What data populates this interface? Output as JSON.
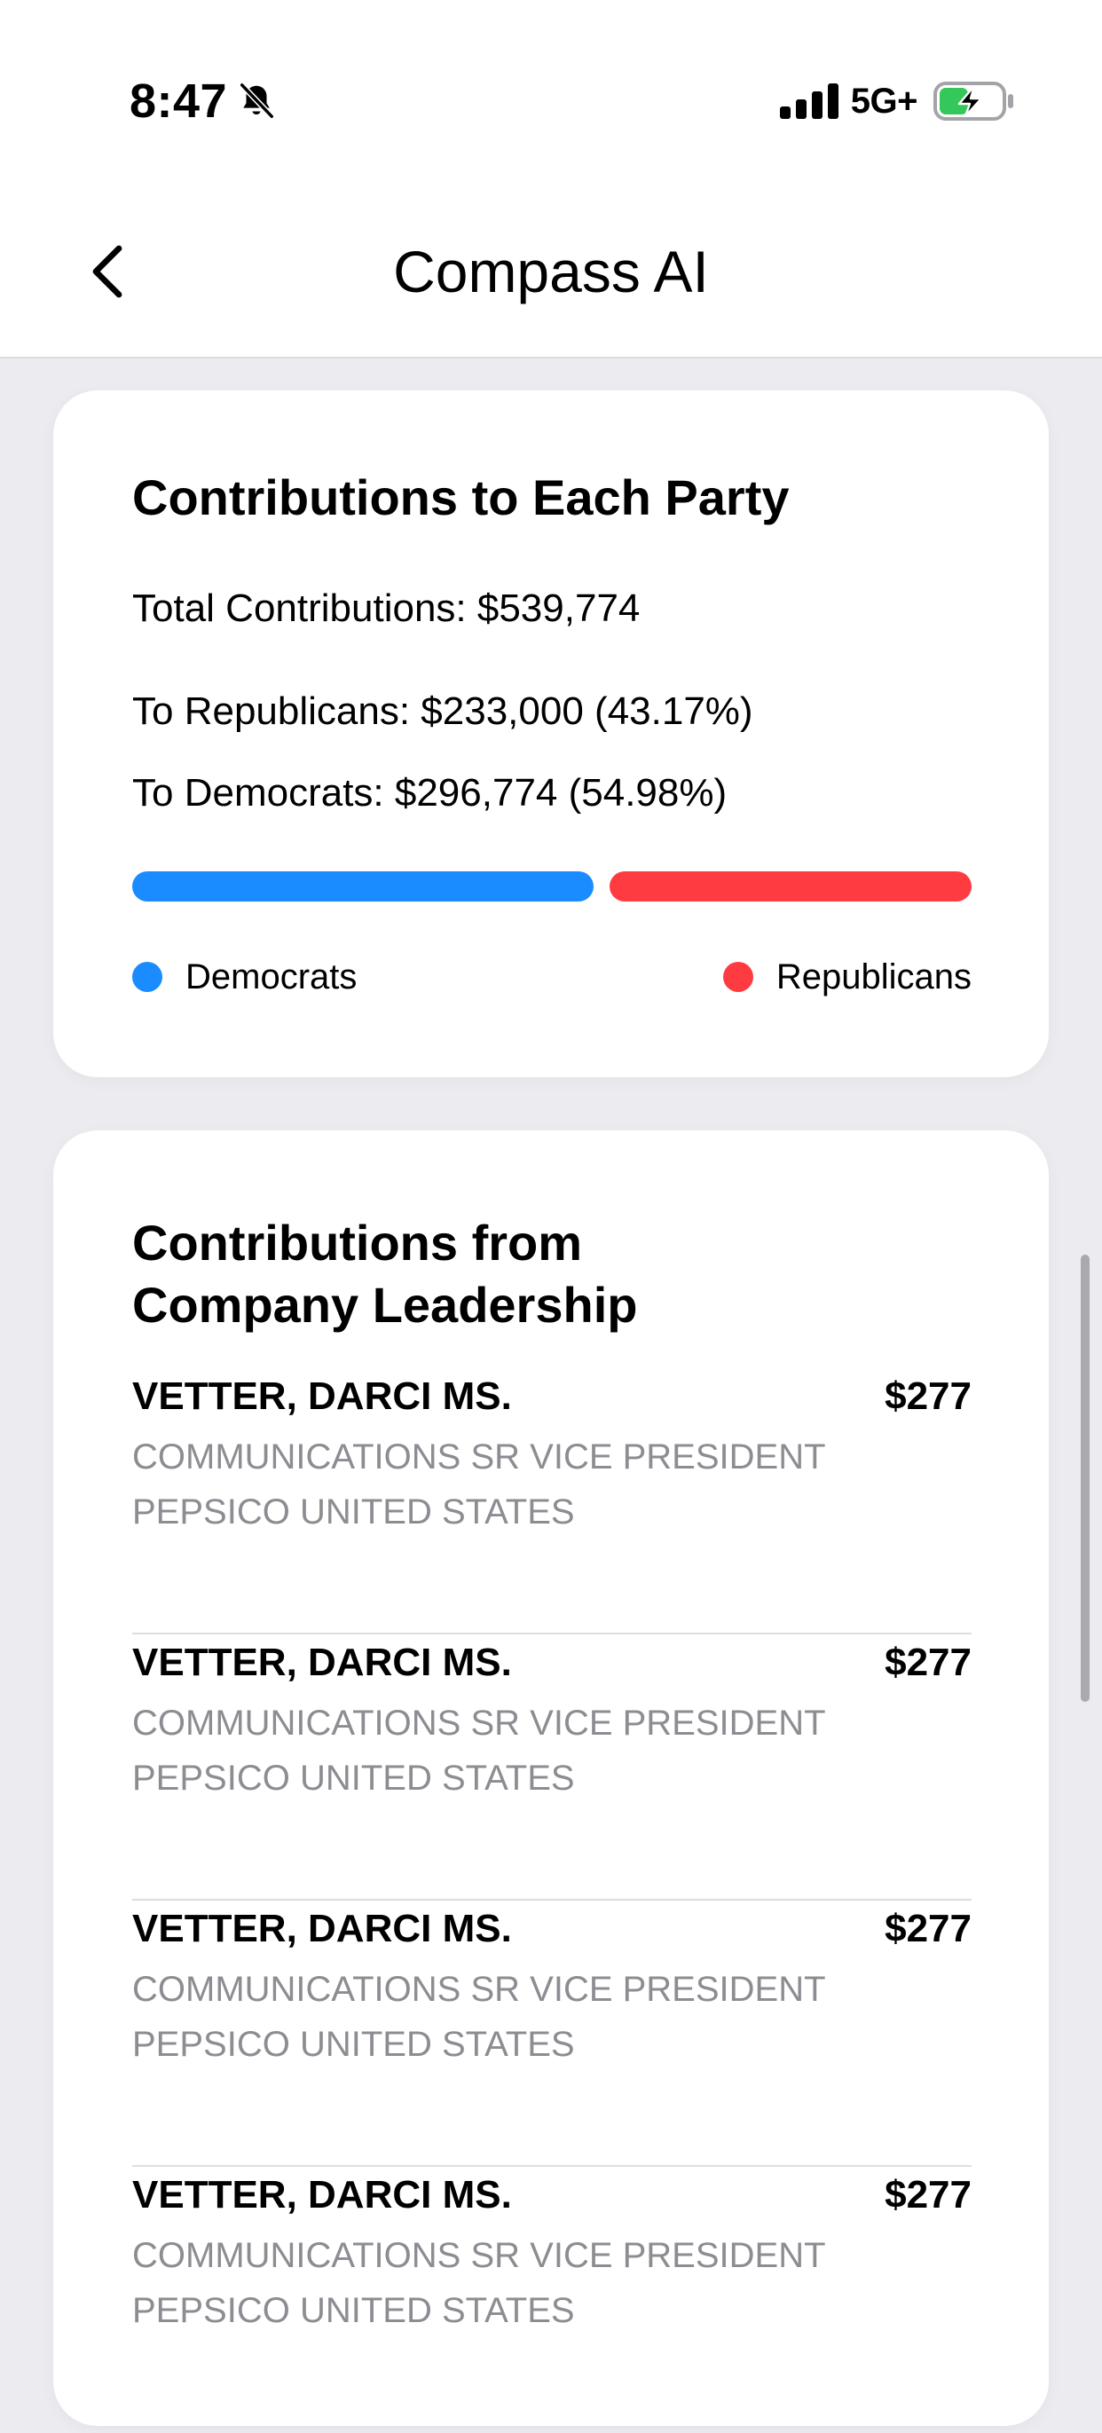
{
  "status_bar": {
    "time": "8:47",
    "network": "5G+",
    "icons": [
      "bell-slash-icon",
      "signal-icon",
      "battery-charging-icon"
    ]
  },
  "header": {
    "title": "Compass AI",
    "back_icon": "chevron-left-icon"
  },
  "party_card": {
    "title": "Contributions to Each Party",
    "total": "Total Contributions: $539,774",
    "republicans": "To Republicans: $233,000 (43.17%)",
    "democrats": "To Democrats: $296,774 (54.98%)",
    "bar": {
      "democrats_share": 0.5498,
      "republicans_share": 0.4317
    },
    "legend": {
      "democrats": "Democrats",
      "republicans": "Republicans"
    },
    "colors": {
      "democrats": "#1a8cff",
      "republicans": "#ff3b42",
      "track": "#ececf0"
    }
  },
  "leaders_card": {
    "title_line1": "Contributions from",
    "title_line2": "Company Leadership",
    "rows": [
      {
        "name": "VETTER, DARCI MS.",
        "amount": "$277",
        "role": "COMMUNICATIONS SR VICE PRESIDENT",
        "company": "PEPSICO UNITED STATES"
      },
      {
        "name": "VETTER, DARCI MS.",
        "amount": "$277",
        "role": "COMMUNICATIONS SR VICE PRESIDENT",
        "company": "PEPSICO UNITED STATES"
      },
      {
        "name": "VETTER, DARCI MS.",
        "amount": "$277",
        "role": "COMMUNICATIONS SR VICE PRESIDENT",
        "company": "PEPSICO UNITED STATES"
      },
      {
        "name": "VETTER, DARCI MS.",
        "amount": "$277",
        "role": "COMMUNICATIONS SR VICE PRESIDENT",
        "company": "PEPSICO UNITED STATES"
      }
    ]
  }
}
